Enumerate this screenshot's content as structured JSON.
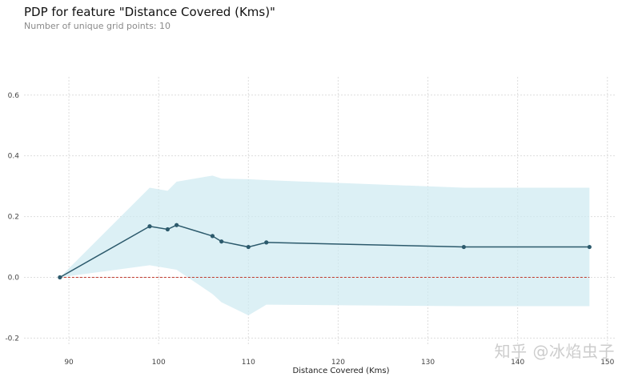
{
  "title": "PDP for feature \"Distance Covered (Kms)\"",
  "subtitle": "Number of unique grid points: 10",
  "watermark": "知乎 @冰焰虫子",
  "chart_data": {
    "type": "line",
    "xlabel": "Distance Covered (Kms)",
    "ylabel": "",
    "xlim": [
      85,
      151
    ],
    "ylim": [
      -0.22,
      0.66
    ],
    "x_ticks": [
      90,
      100,
      110,
      120,
      130,
      140,
      150
    ],
    "y_ticks": [
      -0.2,
      0.0,
      0.2,
      0.4,
      0.6
    ],
    "grid": true,
    "zero_line": {
      "y": 0.0,
      "color": "#c0392b",
      "style": "dashed"
    },
    "series": [
      {
        "x": [
          89,
          99,
          101,
          102,
          106,
          107,
          110,
          112,
          134,
          148
        ],
        "y": [
          0.0,
          0.168,
          0.158,
          0.172,
          0.136,
          0.118,
          0.1,
          0.115,
          0.1,
          0.1
        ],
        "color": "#2c5a6c",
        "marker": "circle"
      }
    ],
    "band": {
      "x": [
        89,
        99,
        101,
        102,
        106,
        107,
        110,
        112,
        134,
        148
      ],
      "upper": [
        0.0,
        0.295,
        0.285,
        0.315,
        0.335,
        0.325,
        0.323,
        0.32,
        0.295,
        0.295
      ],
      "lower": [
        0.0,
        0.04,
        0.03,
        0.025,
        -0.055,
        -0.082,
        -0.125,
        -0.09,
        -0.095,
        -0.095
      ],
      "color": "#cdeaf1"
    }
  }
}
